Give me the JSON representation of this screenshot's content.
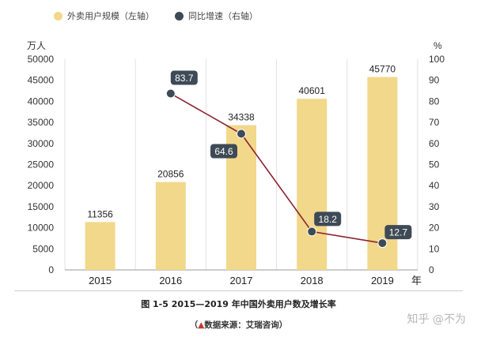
{
  "legend": {
    "bar_label": "外卖用户规模（左轴）",
    "line_label": "同比增速（右轴）"
  },
  "colors": {
    "bar": "#F1D88A",
    "line": "#8B2331",
    "marker": "#3E4A55",
    "label_box": "#3E4A55",
    "grid": "#E2E2E2"
  },
  "caption": "图 1-5   2015—2019 年中国外卖用户数及增长率",
  "source": {
    "open": "（",
    "mark": "▲",
    "text": "数据来源：艾瑞咨询）"
  },
  "watermark": "知乎 @不为",
  "chart_data": {
    "type": "bar",
    "categories": [
      "2015",
      "2016",
      "2017",
      "2018",
      "2019"
    ],
    "series": [
      {
        "name": "外卖用户规模（左轴）",
        "axis": "left",
        "kind": "bar",
        "values": [
          11356,
          20856,
          34338,
          40601,
          45770
        ],
        "labels": [
          "11356",
          "20856",
          "34338",
          "40601",
          "45770"
        ]
      },
      {
        "name": "同比增速（右轴）",
        "axis": "right",
        "kind": "line",
        "values": [
          null,
          83.7,
          64.6,
          18.2,
          12.7
        ],
        "labels": [
          "",
          "83.7",
          "64.6",
          "18.2",
          "12.7"
        ]
      }
    ],
    "y_left": {
      "unit": "万人",
      "ylim": [
        0,
        50000
      ],
      "ticks": [
        "0",
        "5000",
        "10000",
        "15000",
        "20000",
        "25000",
        "30000",
        "35000",
        "40000",
        "45000",
        "50000"
      ]
    },
    "y_right": {
      "unit": "%",
      "ylim": [
        0,
        100
      ],
      "ticks": [
        "0",
        "10",
        "20",
        "30",
        "40",
        "50",
        "60",
        "70",
        "80",
        "90",
        "100"
      ]
    },
    "x_unit": "年",
    "grid": "vertical",
    "legend_position": "top-left"
  }
}
